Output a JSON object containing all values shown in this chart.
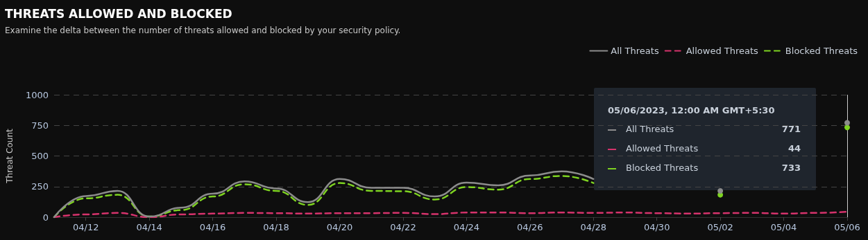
{
  "chart_data": {
    "type": "line",
    "title": "THREATS ALLOWED AND BLOCKED",
    "subtitle": "Examine the delta between the number of threats allowed and blocked by your security policy.",
    "ylabel": "Threat Count",
    "categories": [
      null,
      "04/12",
      null,
      "04/14",
      null,
      "04/16",
      null,
      "04/18",
      null,
      "04/20",
      null,
      "04/22",
      null,
      "04/24",
      null,
      "04/26",
      null,
      "04/28",
      null,
      "04/30",
      null,
      "05/02",
      null,
      "05/04",
      null,
      "05/06"
    ],
    "series": [
      {
        "name": "All Threats",
        "color": "#8c8c8c",
        "line_style": "solid",
        "values": [
          0,
          173,
          215,
          5,
          77,
          192,
          292,
          235,
          123,
          312,
          240,
          240,
          169,
          283,
          260,
          340,
          375,
          312,
          null,
          null,
          null,
          215,
          null,
          null,
          null,
          771
        ]
      },
      {
        "name": "Allowed Threats",
        "color": "#d6336c",
        "line_style": "dashed",
        "values": [
          0,
          23,
          35,
          0,
          23,
          29,
          35,
          33,
          29,
          33,
          33,
          35,
          25,
          38,
          38,
          33,
          38,
          35,
          38,
          33,
          29,
          33,
          35,
          29,
          35,
          44
        ]
      },
      {
        "name": "Blocked Threats",
        "color": "#7ed321",
        "line_style": "dashed",
        "values": [
          0,
          154,
          183,
          5,
          58,
          169,
          269,
          215,
          100,
          279,
          215,
          212,
          144,
          246,
          225,
          312,
          337,
          279,
          null,
          null,
          null,
          183,
          null,
          null,
          null,
          733
        ]
      }
    ],
    "ylim": [
      0,
      1000
    ],
    "yticks": [
      0,
      250,
      500,
      750,
      1000
    ],
    "grid": "y",
    "legend": "top right",
    "marker": "none",
    "ref_lines": [
      {
        "axis": "x",
        "value": "05/06",
        "color": "#cccccc"
      }
    ],
    "annotations": [
      "05/06/2023, 12:00 AM GMT+5:30",
      "771",
      "44",
      "733"
    ]
  }
}
